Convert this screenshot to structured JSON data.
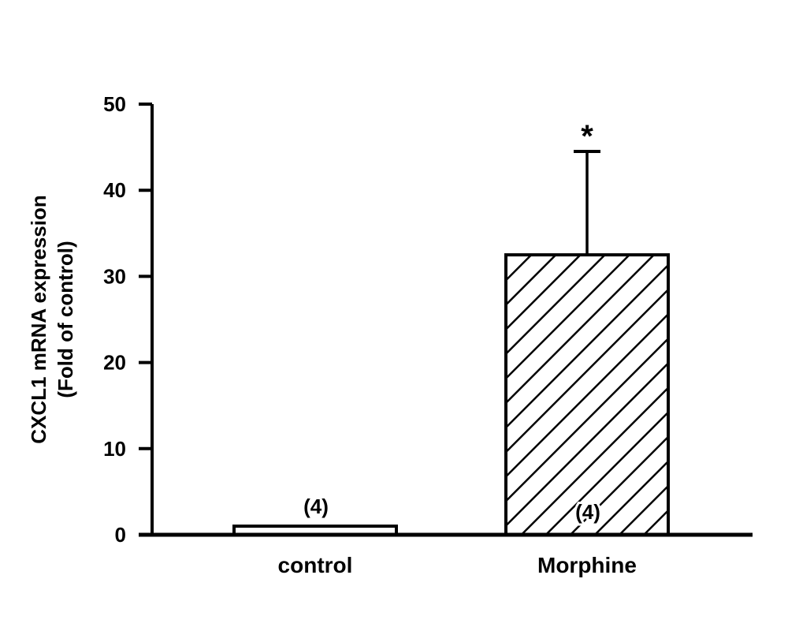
{
  "chart_data": {
    "type": "bar",
    "title": "",
    "xlabel": "",
    "ylabel": [
      "CXCL1 mRNA expression",
      "(Fold of control)"
    ],
    "categories": [
      "control",
      "Morphine"
    ],
    "values": [
      1.0,
      32.5
    ],
    "error_upper": [
      0,
      12.0
    ],
    "n_labels": [
      "(4)",
      "(4)"
    ],
    "significance": [
      "",
      "*"
    ],
    "fills": [
      "white",
      "diagonal-hatch"
    ],
    "ylim": [
      0,
      50
    ],
    "yticks": [
      0,
      10,
      20,
      30,
      40,
      50
    ],
    "grid": false,
    "colors": {
      "bar_stroke": "#000000",
      "bar_fill": "#ffffff"
    }
  }
}
